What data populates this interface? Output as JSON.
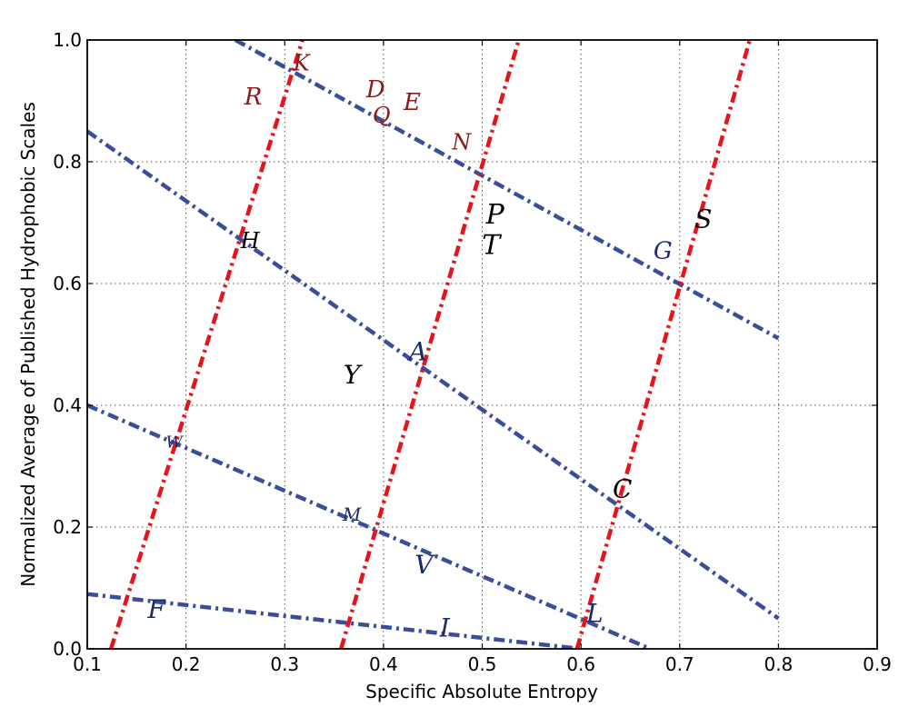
{
  "chart_data": {
    "type": "scatter",
    "title": "",
    "xlabel": "Specific Absolute Entropy",
    "ylabel": "Normalized Average of Published Hydrophobic Scales",
    "xlim": [
      0.1,
      0.9
    ],
    "ylim": [
      0.0,
      1.0
    ],
    "xticks": [
      0.1,
      0.2,
      0.3,
      0.4,
      0.5,
      0.6,
      0.7,
      0.8,
      0.9
    ],
    "yticks": [
      0.0,
      0.2,
      0.4,
      0.6,
      0.8,
      1.0
    ],
    "xtick_labels": [
      "0.1",
      "0.2",
      "0.3",
      "0.4",
      "0.5",
      "0.6",
      "0.7",
      "0.8",
      "0.9"
    ],
    "ytick_labels": [
      "0.0",
      "0.2",
      "0.4",
      "0.6",
      "0.8",
      "1.0"
    ],
    "grid": true,
    "legend": "none",
    "colors": {
      "red_lines": "#e8141c",
      "blue_lines": "#3a4d9a",
      "label_black": "#000000",
      "label_darkred": "#8b1a1a",
      "label_navy": "#1e2b6b"
    },
    "red_lines": [
      {
        "x1": 0.124,
        "y1": 0.0,
        "x2": 0.318,
        "y2": 1.0
      },
      {
        "x1": 0.357,
        "y1": 0.0,
        "x2": 0.537,
        "y2": 1.0
      },
      {
        "x1": 0.596,
        "y1": 0.0,
        "x2": 0.771,
        "y2": 1.0
      }
    ],
    "blue_lines": [
      {
        "x1": 0.25,
        "y1": 1.0,
        "x2": 0.8,
        "y2": 0.51
      },
      {
        "x1": 0.1,
        "y1": 0.85,
        "x2": 0.8,
        "y2": 0.05
      },
      {
        "x1": 0.1,
        "y1": 0.4,
        "x2": 0.67,
        "y2": 0.0
      },
      {
        "x1": 0.1,
        "y1": 0.09,
        "x2": 0.6,
        "y2": 0.0
      }
    ],
    "points": [
      {
        "label": "K",
        "x": 0.317,
        "y": 0.962,
        "color": "darkred",
        "size": 24
      },
      {
        "label": "R",
        "x": 0.268,
        "y": 0.906,
        "color": "darkred",
        "size": 26
      },
      {
        "label": "D",
        "x": 0.392,
        "y": 0.918,
        "color": "darkred",
        "size": 26
      },
      {
        "label": "E",
        "x": 0.429,
        "y": 0.897,
        "color": "darkred",
        "size": 26
      },
      {
        "label": "Q",
        "x": 0.398,
        "y": 0.876,
        "color": "darkred",
        "size": 24
      },
      {
        "label": "N",
        "x": 0.479,
        "y": 0.832,
        "color": "darkred",
        "size": 24
      },
      {
        "label": "P",
        "x": 0.513,
        "y": 0.713,
        "color": "black",
        "size": 30
      },
      {
        "label": "T",
        "x": 0.509,
        "y": 0.663,
        "color": "black",
        "size": 30
      },
      {
        "label": "H",
        "x": 0.265,
        "y": 0.67,
        "color": "black",
        "size": 24
      },
      {
        "label": "G",
        "x": 0.683,
        "y": 0.653,
        "color": "navy",
        "size": 26
      },
      {
        "label": "S",
        "x": 0.724,
        "y": 0.706,
        "color": "black",
        "size": 28
      },
      {
        "label": "A",
        "x": 0.435,
        "y": 0.488,
        "color": "navy",
        "size": 28
      },
      {
        "label": "Y",
        "x": 0.368,
        "y": 0.45,
        "color": "black",
        "size": 28
      },
      {
        "label": "W",
        "x": 0.188,
        "y": 0.339,
        "color": "navy",
        "size": 18
      },
      {
        "label": "C",
        "x": 0.642,
        "y": 0.263,
        "color": "black",
        "size": 28
      },
      {
        "label": "M",
        "x": 0.368,
        "y": 0.221,
        "color": "navy",
        "size": 20
      },
      {
        "label": "V",
        "x": 0.441,
        "y": 0.138,
        "color": "navy",
        "size": 28
      },
      {
        "label": "L",
        "x": 0.614,
        "y": 0.058,
        "color": "navy",
        "size": 28
      },
      {
        "label": "F",
        "x": 0.17,
        "y": 0.065,
        "color": "navy",
        "size": 28
      },
      {
        "label": "I",
        "x": 0.462,
        "y": 0.034,
        "color": "navy",
        "size": 28
      }
    ]
  }
}
